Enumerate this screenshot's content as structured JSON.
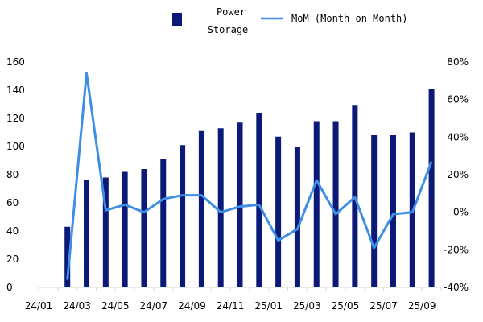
{
  "chart_data": {
    "type": "bar",
    "categories": [
      "24/01",
      "24/02",
      "24/03",
      "24/04",
      "24/05",
      "24/06",
      "24/07",
      "24/08",
      "24/09",
      "24/10",
      "24/11",
      "24/12",
      "25/01",
      "25/02",
      "25/03",
      "25/04",
      "25/05",
      "25/06",
      "25/07",
      "25/08",
      "25/09"
    ],
    "x_tick_labels": [
      "24/01",
      "24/03",
      "24/05",
      "24/07",
      "24/09",
      "24/11",
      "25/01",
      "25/03",
      "25/05",
      "25/07",
      "25/09"
    ],
    "series": [
      {
        "name": "Power Storage",
        "type": "bar",
        "axis": "left",
        "color": "#0b1a78",
        "values": [
          null,
          43,
          76,
          78,
          82,
          84,
          91,
          101,
          111,
          113,
          117,
          124,
          107,
          100,
          118,
          118,
          129,
          108,
          108,
          110,
          141
        ]
      },
      {
        "name": "MoM (Month-on-Month)",
        "type": "line",
        "axis": "right",
        "color": "#3e8ee6",
        "values": [
          null,
          -36,
          74,
          1,
          4,
          0,
          7,
          9,
          9,
          0,
          3,
          4,
          -15,
          -9,
          17,
          -1,
          8,
          -19,
          -1,
          0,
          27
        ]
      }
    ],
    "ylim_left": [
      0,
      160
    ],
    "yticks_left": [
      "0",
      "20",
      "40",
      "60",
      "80",
      "100",
      "120",
      "140",
      "160"
    ],
    "ylim_right": [
      -40,
      80
    ],
    "yticks_right": [
      "-40%",
      "-20%",
      "0%",
      "20%",
      "40%",
      "60%",
      "80%"
    ],
    "legend_position": "top",
    "grid": false
  },
  "legend": {
    "bar_label_line1": "Power",
    "bar_label_line2": "Storage",
    "line_label": "MoM (Month-on-Month)"
  }
}
